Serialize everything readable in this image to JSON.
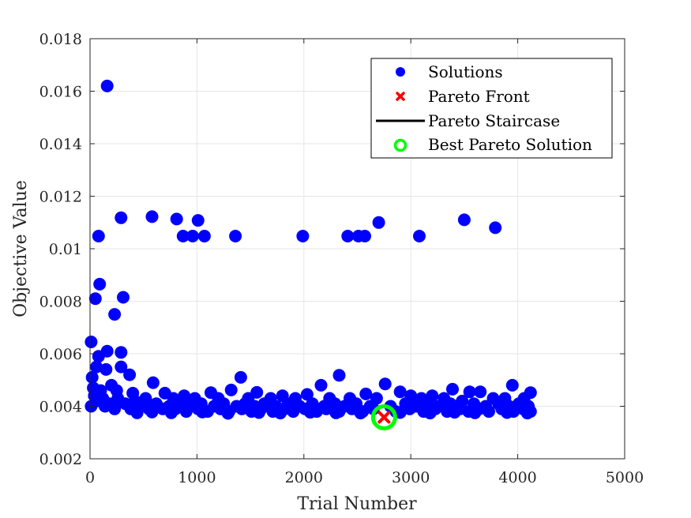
{
  "chart_data": {
    "type": "scatter",
    "xlabel": "Trial Number",
    "ylabel": "Objective Value",
    "xlim": [
      0,
      5000
    ],
    "ylim": [
      0.002,
      0.018
    ],
    "xticks": [
      0,
      1000,
      2000,
      3000,
      4000,
      5000
    ],
    "xtick_labels": [
      "0",
      "1000",
      "2000",
      "3000",
      "4000",
      "5000"
    ],
    "yticks": [
      0.002,
      0.004,
      0.006,
      0.008,
      0.01,
      0.012,
      0.014,
      0.016,
      0.018
    ],
    "ytick_labels": [
      "0.002",
      "0.004",
      "0.006",
      "0.008",
      "0.01",
      "0.012",
      "0.014",
      "0.016",
      "0.018"
    ],
    "grid": true,
    "legend_position": "top-right",
    "legend": [
      "Solutions",
      "Pareto Front",
      "Pareto Staircase",
      "Best Pareto Solution"
    ],
    "series": [
      {
        "name": "Solutions",
        "marker": "filled-circle",
        "color": "#0000FF",
        "points": [
          [
            160,
            0.0162
          ],
          [
            290,
            0.01118
          ],
          [
            580,
            0.01122
          ],
          [
            810,
            0.01113
          ],
          [
            1010,
            0.01108
          ],
          [
            2700,
            0.011
          ],
          [
            3500,
            0.0111
          ],
          [
            3790,
            0.0108
          ],
          [
            80,
            0.01048
          ],
          [
            870,
            0.01048
          ],
          [
            960,
            0.01048
          ],
          [
            1070,
            0.01048
          ],
          [
            1360,
            0.01048
          ],
          [
            1990,
            0.01048
          ],
          [
            2410,
            0.01048
          ],
          [
            2510,
            0.01048
          ],
          [
            2570,
            0.01048
          ],
          [
            3080,
            0.01048
          ],
          [
            90,
            0.00865
          ],
          [
            50,
            0.0081
          ],
          [
            310,
            0.00815
          ],
          [
            230,
            0.0075
          ],
          [
            10,
            0.00645
          ],
          [
            160,
            0.0061
          ],
          [
            80,
            0.0059
          ],
          [
            290,
            0.00605
          ],
          [
            60,
            0.0055
          ],
          [
            150,
            0.0054
          ],
          [
            290,
            0.0055
          ],
          [
            370,
            0.0052
          ],
          [
            20,
            0.0051
          ],
          [
            590,
            0.0049
          ],
          [
            1410,
            0.0051
          ],
          [
            2330,
            0.00518
          ],
          [
            2760,
            0.00485
          ],
          [
            2160,
            0.0048
          ],
          [
            3950,
            0.0048
          ],
          [
            3390,
            0.00465
          ],
          [
            4120,
            0.00452
          ],
          [
            1320,
            0.00462
          ],
          [
            30,
            0.0047
          ],
          [
            200,
            0.0048
          ],
          [
            100,
            0.0046
          ],
          [
            250,
            0.0046
          ],
          [
            400,
            0.0045
          ],
          [
            700,
            0.0045
          ],
          [
            1130,
            0.00452
          ],
          [
            1560,
            0.00453
          ],
          [
            2030,
            0.00445
          ],
          [
            2580,
            0.00447
          ],
          [
            2900,
            0.00455
          ],
          [
            3550,
            0.00455
          ],
          [
            3650,
            0.00455
          ],
          [
            3000,
            0.0044
          ],
          [
            3200,
            0.0044
          ],
          [
            40,
            0.0044
          ],
          [
            120,
            0.0043
          ],
          [
            260,
            0.0043
          ],
          [
            420,
            0.0042
          ],
          [
            520,
            0.0043
          ],
          [
            780,
            0.0043
          ],
          [
            880,
            0.0044
          ],
          [
            980,
            0.0043
          ],
          [
            1200,
            0.0043
          ],
          [
            1480,
            0.0043
          ],
          [
            1690,
            0.0043
          ],
          [
            1800,
            0.0044
          ],
          [
            1920,
            0.0043
          ],
          [
            2240,
            0.0043
          ],
          [
            2430,
            0.0043
          ],
          [
            2680,
            0.0043
          ],
          [
            3100,
            0.0043
          ],
          [
            3310,
            0.0043
          ],
          [
            3480,
            0.0042
          ],
          [
            3770,
            0.0043
          ],
          [
            3880,
            0.0043
          ],
          [
            4060,
            0.0043
          ],
          [
            60,
            0.0042
          ],
          [
            180,
            0.0041
          ],
          [
            330,
            0.0041
          ],
          [
            470,
            0.004
          ],
          [
            620,
            0.0041
          ],
          [
            740,
            0.004
          ],
          [
            840,
            0.0041
          ],
          [
            930,
            0.004
          ],
          [
            1040,
            0.0041
          ],
          [
            1160,
            0.004
          ],
          [
            1250,
            0.0041
          ],
          [
            1370,
            0.004
          ],
          [
            1450,
            0.0041
          ],
          [
            1540,
            0.004
          ],
          [
            1630,
            0.0041
          ],
          [
            1740,
            0.004
          ],
          [
            1850,
            0.0041
          ],
          [
            1960,
            0.004
          ],
          [
            2080,
            0.0041
          ],
          [
            2190,
            0.004
          ],
          [
            2290,
            0.0041
          ],
          [
            2380,
            0.004
          ],
          [
            2490,
            0.0041
          ],
          [
            2620,
            0.004
          ],
          [
            2810,
            0.004
          ],
          [
            2950,
            0.0041
          ],
          [
            3050,
            0.004
          ],
          [
            3160,
            0.0041
          ],
          [
            3260,
            0.004
          ],
          [
            3370,
            0.0041
          ],
          [
            3430,
            0.004
          ],
          [
            3590,
            0.0041
          ],
          [
            3700,
            0.004
          ],
          [
            3820,
            0.0041
          ],
          [
            3920,
            0.004
          ],
          [
            4010,
            0.0041
          ],
          [
            4100,
            0.004
          ],
          [
            10,
            0.004
          ],
          [
            140,
            0.004
          ],
          [
            230,
            0.0039
          ],
          [
            380,
            0.0039
          ],
          [
            550,
            0.0039
          ],
          [
            680,
            0.0039
          ],
          [
            800,
            0.0039
          ],
          [
            900,
            0.0038
          ],
          [
            1010,
            0.0039
          ],
          [
            1100,
            0.0038
          ],
          [
            1220,
            0.0039
          ],
          [
            1300,
            0.0038
          ],
          [
            1420,
            0.0039
          ],
          [
            1510,
            0.0038
          ],
          [
            1600,
            0.0039
          ],
          [
            1710,
            0.0038
          ],
          [
            1820,
            0.0039
          ],
          [
            1900,
            0.0038
          ],
          [
            2010,
            0.0039
          ],
          [
            2120,
            0.0038
          ],
          [
            2210,
            0.0039
          ],
          [
            2330,
            0.0038
          ],
          [
            2450,
            0.0039
          ],
          [
            2550,
            0.0038
          ],
          [
            2650,
            0.0039
          ],
          [
            2860,
            0.0038
          ],
          [
            2990,
            0.0039
          ],
          [
            3120,
            0.0038
          ],
          [
            3230,
            0.0039
          ],
          [
            3340,
            0.0038
          ],
          [
            3460,
            0.0039
          ],
          [
            3540,
            0.0038
          ],
          [
            3640,
            0.0039
          ],
          [
            3730,
            0.0038
          ],
          [
            3850,
            0.0039
          ],
          [
            3960,
            0.0038
          ],
          [
            4050,
            0.0039
          ],
          [
            4120,
            0.0038
          ],
          [
            440,
            0.00375
          ],
          [
            580,
            0.00378
          ],
          [
            760,
            0.00375
          ],
          [
            1050,
            0.00378
          ],
          [
            1290,
            0.00373
          ],
          [
            1580,
            0.00376
          ],
          [
            1780,
            0.00374
          ],
          [
            2060,
            0.00377
          ],
          [
            2300,
            0.00375
          ],
          [
            2530,
            0.00374
          ],
          [
            2900,
            0.00376
          ],
          [
            3180,
            0.00374
          ],
          [
            3410,
            0.00377
          ],
          [
            3600,
            0.00375
          ],
          [
            3900,
            0.00376
          ],
          [
            4090,
            0.00374
          ]
        ]
      },
      {
        "name": "Pareto Front",
        "marker": "x",
        "color": "#FF0000",
        "points": [
          [
            2750,
            0.00358
          ]
        ]
      },
      {
        "name": "Pareto Staircase",
        "marker": "line",
        "color": "#000000",
        "points": []
      },
      {
        "name": "Best Pareto Solution",
        "marker": "open-circle",
        "color": "#00FF00",
        "points": [
          [
            2750,
            0.00358
          ]
        ]
      }
    ]
  }
}
